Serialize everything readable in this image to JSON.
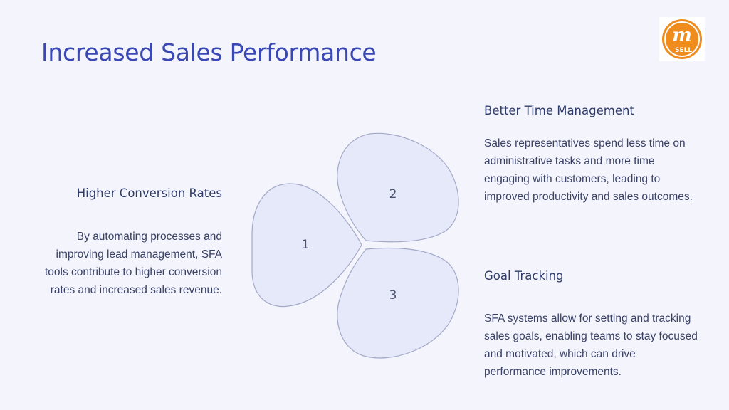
{
  "title": "Increased Sales Performance",
  "logo": {
    "icon": "m-sell-logo",
    "text": "SELL",
    "accent": "#f08c1e"
  },
  "items": [
    {
      "number": "1",
      "heading": "Higher Conversion Rates",
      "body": "By automating processes and improving lead management, SFA tools contribute to higher conversion rates and increased sales revenue."
    },
    {
      "number": "2",
      "heading": "Better Time Management",
      "body": "Sales representatives spend less time on administrative tasks and more time engaging with customers, leading to improved productivity and sales outcomes."
    },
    {
      "number": "3",
      "heading": "Goal Tracking",
      "body": "SFA systems allow for setting and tracking sales goals, enabling teams to stay focused and motivated, which can drive performance improvements."
    }
  ],
  "colors": {
    "title": "#3a48b5",
    "petal_fill": "#e6e9fa",
    "petal_stroke": "#a3a9c8",
    "background": "#f4f5fc"
  }
}
